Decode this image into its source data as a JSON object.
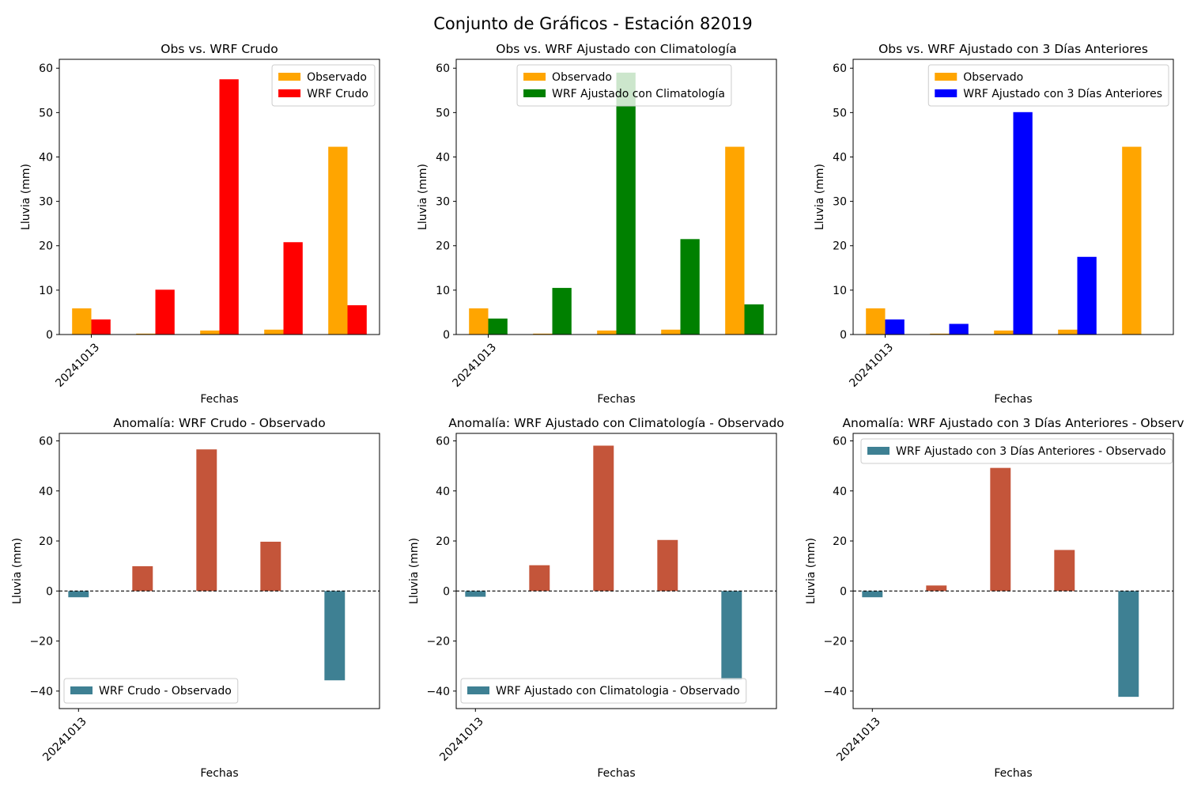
{
  "figure": {
    "title": "Conjunto de Gráficos - Estación 82019"
  },
  "colors": {
    "observado": "#FFA500",
    "wrf_crudo": "#FF0000",
    "wrf_clim": "#008000",
    "wrf_3dias": "#0000FF",
    "anomaly_positive": "#C4553A",
    "anomaly_negative": "#3E8093"
  },
  "chart_data": [
    {
      "type": "bar",
      "title": "Obs vs. WRF Crudo",
      "xlabel": "Fechas",
      "ylabel": "Lluvia (mm)",
      "tick_labels": [
        "20241013"
      ],
      "ylim": [
        0,
        62
      ],
      "yticks": [
        0,
        10,
        20,
        30,
        40,
        50,
        60
      ],
      "legend_position": "upper right",
      "series": [
        {
          "name": "Observado",
          "color_key": "observado",
          "values": [
            5.9,
            0.2,
            0.9,
            1.1,
            42.3
          ]
        },
        {
          "name": "WRF Crudo",
          "color_key": "wrf_crudo",
          "values": [
            3.4,
            10.1,
            57.5,
            20.8,
            6.6
          ]
        }
      ]
    },
    {
      "type": "bar",
      "title": "Obs vs. WRF Ajustado con Climatología",
      "xlabel": "Fechas",
      "ylabel": "Lluvia (mm)",
      "tick_labels": [
        "20241013"
      ],
      "ylim": [
        0,
        62
      ],
      "yticks": [
        0,
        10,
        20,
        30,
        40,
        50,
        60
      ],
      "legend_position": "upper center",
      "series": [
        {
          "name": "Observado",
          "color_key": "observado",
          "values": [
            5.9,
            0.2,
            0.9,
            1.1,
            42.3
          ]
        },
        {
          "name": "WRF Ajustado con Climatología",
          "color_key": "wrf_clim",
          "values": [
            3.6,
            10.5,
            59.0,
            21.5,
            6.8
          ]
        }
      ]
    },
    {
      "type": "bar",
      "title": "Obs vs. WRF Ajustado con 3 Días Anteriores",
      "xlabel": "Fechas",
      "ylabel": "Lluvia (mm)",
      "tick_labels": [
        "20241013"
      ],
      "ylim": [
        0,
        62
      ],
      "yticks": [
        0,
        10,
        20,
        30,
        40,
        50,
        60
      ],
      "legend_position": "upper right",
      "series": [
        {
          "name": "Observado",
          "color_key": "observado",
          "values": [
            5.9,
            0.2,
            0.9,
            1.1,
            42.3
          ]
        },
        {
          "name": "WRF Ajustado con 3 Días Anteriores",
          "color_key": "wrf_3dias",
          "values": [
            3.4,
            2.4,
            50.1,
            17.5,
            0.0
          ]
        }
      ]
    },
    {
      "type": "bar",
      "title": "Anomalía: WRF Crudo - Observado",
      "xlabel": "Fechas",
      "ylabel": "Lluvia (mm)",
      "tick_labels": [
        "20241013"
      ],
      "ylim": [
        -47,
        63
      ],
      "yticks": [
        -40,
        -20,
        0,
        20,
        40,
        60
      ],
      "legend_position": "lower left",
      "series": [
        {
          "name": "WRF Crudo - Observado",
          "values": [
            -2.5,
            9.9,
            56.6,
            19.7,
            -35.7
          ]
        }
      ]
    },
    {
      "type": "bar",
      "title": "Anomalía: WRF Ajustado con Climatología - Observado",
      "xlabel": "Fechas",
      "ylabel": "Lluvia (mm)",
      "tick_labels": [
        "20241013"
      ],
      "ylim": [
        -47,
        63
      ],
      "yticks": [
        -40,
        -20,
        0,
        20,
        40,
        60
      ],
      "legend_position": "lower left",
      "series": [
        {
          "name": "WRF Ajustado con Climatologia - Observado",
          "values": [
            -2.3,
            10.3,
            58.1,
            20.4,
            -35.5
          ]
        }
      ]
    },
    {
      "type": "bar",
      "title": "Anomalía: WRF Ajustado con 3 Días Anteriores - Observ",
      "xlabel": "Fechas",
      "ylabel": "Lluvia (mm)",
      "tick_labels": [
        "20241013"
      ],
      "ylim": [
        -47,
        63
      ],
      "yticks": [
        -40,
        -20,
        0,
        20,
        40,
        60
      ],
      "legend_position": "upper left",
      "series": [
        {
          "name": "WRF Ajustado con 3 Días Anteriores - Observado",
          "values": [
            -2.5,
            2.2,
            49.2,
            16.4,
            -42.3
          ]
        }
      ]
    }
  ]
}
